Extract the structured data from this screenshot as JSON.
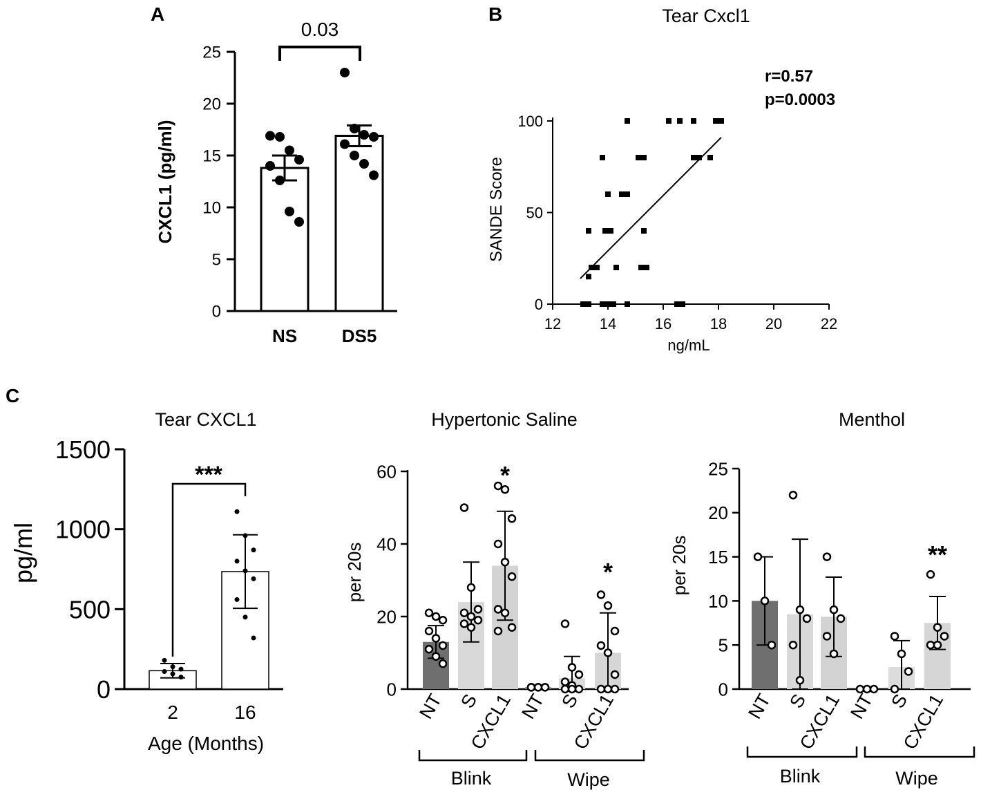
{
  "figure": {
    "panel_labels": {
      "a": "A",
      "b": "B",
      "c": "C"
    }
  },
  "chart_data": [
    {
      "id": "A",
      "type": "bar",
      "title": "",
      "ylabel": "CXCL1 (pg/ml)",
      "xlabel": "",
      "categories": [
        "NS",
        "DS5"
      ],
      "values": [
        13.8,
        16.9
      ],
      "error": [
        1.2,
        1.0
      ],
      "ylim": [
        0,
        25
      ],
      "yticks": [
        0,
        5,
        10,
        15,
        20,
        25
      ],
      "points": [
        [
          16.9,
          16.8,
          15.5,
          14.6,
          14.0,
          12.6,
          9.6,
          8.6
        ],
        [
          23.0,
          17.6,
          17.0,
          16.8,
          16.1,
          15.0,
          14.2,
          13.1
        ]
      ],
      "annotation": "0.03"
    },
    {
      "id": "B",
      "type": "scatter",
      "title": "Tear Cxcl1",
      "xlabel": "ng/mL",
      "ylabel": "SANDE Score",
      "xlim": [
        12,
        22
      ],
      "xticks": [
        12,
        14,
        16,
        18,
        20,
        22
      ],
      "ylim": [
        0,
        100
      ],
      "yticks": [
        0,
        50,
        100
      ],
      "points": [
        [
          13.1,
          0
        ],
        [
          13.3,
          0
        ],
        [
          13.8,
          0
        ],
        [
          14.0,
          0
        ],
        [
          14.2,
          0
        ],
        [
          14.7,
          0
        ],
        [
          16.5,
          0
        ],
        [
          16.7,
          0
        ],
        [
          13.3,
          15
        ],
        [
          13.4,
          20
        ],
        [
          13.6,
          20
        ],
        [
          14.3,
          20
        ],
        [
          15.2,
          20
        ],
        [
          15.4,
          20
        ],
        [
          13.3,
          40
        ],
        [
          13.9,
          40
        ],
        [
          14.1,
          40
        ],
        [
          15.3,
          40
        ],
        [
          14.0,
          60
        ],
        [
          14.5,
          60
        ],
        [
          14.7,
          60
        ],
        [
          13.8,
          80
        ],
        [
          15.1,
          80
        ],
        [
          15.3,
          80
        ],
        [
          17.1,
          80
        ],
        [
          17.3,
          80
        ],
        [
          17.7,
          80
        ],
        [
          14.7,
          100
        ],
        [
          16.2,
          100
        ],
        [
          16.6,
          100
        ],
        [
          17.1,
          100
        ],
        [
          17.9,
          100
        ],
        [
          18.1,
          100
        ]
      ],
      "fit_line": [
        [
          13.0,
          14
        ],
        [
          18.1,
          91
        ]
      ],
      "annotations": [
        "r=0.57",
        "p=0.0003"
      ]
    },
    {
      "id": "C1",
      "type": "bar",
      "title": "Tear CXCL1",
      "xlabel": "Age (Months)",
      "ylabel": "pg/ml",
      "categories": [
        "2",
        "16"
      ],
      "values": [
        115,
        735
      ],
      "error": [
        45,
        230
      ],
      "ylim": [
        0,
        1500
      ],
      "yticks": [
        0,
        500,
        1000,
        1500
      ],
      "points": [
        [
          180,
          140,
          125,
          110,
          95,
          75
        ],
        [
          1110,
          960,
          870,
          800,
          740,
          690,
          560,
          450,
          320
        ]
      ],
      "annotation": "***"
    },
    {
      "id": "C2",
      "type": "bar",
      "title": "Hypertonic Saline",
      "ylabel": "per 20s",
      "categories": [
        "NT",
        "S",
        "CXCL1",
        "NT",
        "S",
        "CXCL1"
      ],
      "groups": [
        "Blink",
        "Wipe"
      ],
      "values": [
        13,
        24,
        34,
        0.5,
        3,
        10
      ],
      "error": [
        4.5,
        11,
        15,
        0.3,
        6,
        11
      ],
      "ylim": [
        0,
        60
      ],
      "yticks": [
        0,
        20,
        40,
        60
      ],
      "points": [
        [
          21,
          20,
          19,
          16,
          14,
          12,
          11,
          9,
          7
        ],
        [
          50,
          28,
          22,
          21,
          20,
          19,
          18,
          17
        ],
        [
          56,
          55,
          47,
          40,
          35,
          31,
          22,
          21,
          17,
          16
        ],
        [
          0.5,
          0.5,
          0.5,
          0.5,
          0.5,
          0.5,
          0.5
        ],
        [
          18,
          6,
          4,
          2,
          1,
          0,
          0,
          0
        ],
        [
          26,
          23,
          16,
          12,
          10,
          4,
          0,
          0,
          0
        ]
      ],
      "significance": [
        "",
        "",
        "*",
        "",
        "",
        "*"
      ]
    },
    {
      "id": "C3",
      "type": "bar",
      "title": "Menthol",
      "ylabel": "per 20s",
      "categories": [
        "NT",
        "S",
        "CXCL1",
        "NT",
        "S",
        "CXCL1"
      ],
      "groups": [
        "Blink",
        "Wipe"
      ],
      "values": [
        10,
        8.5,
        8.2,
        0,
        2.5,
        7.5
      ],
      "error": [
        5,
        8.5,
        4.5,
        0,
        3,
        3
      ],
      "ylim": [
        0,
        25
      ],
      "yticks": [
        0,
        5,
        10,
        15,
        20,
        25
      ],
      "points": [
        [
          15,
          10,
          5
        ],
        [
          22,
          9,
          8,
          5,
          1
        ],
        [
          15,
          9,
          8,
          6,
          4
        ],
        [
          0,
          0,
          0
        ],
        [
          6,
          4,
          2,
          0
        ],
        [
          13,
          7,
          6,
          5,
          5
        ]
      ],
      "significance": [
        "",
        "",
        "",
        "",
        "",
        "**"
      ]
    }
  ]
}
